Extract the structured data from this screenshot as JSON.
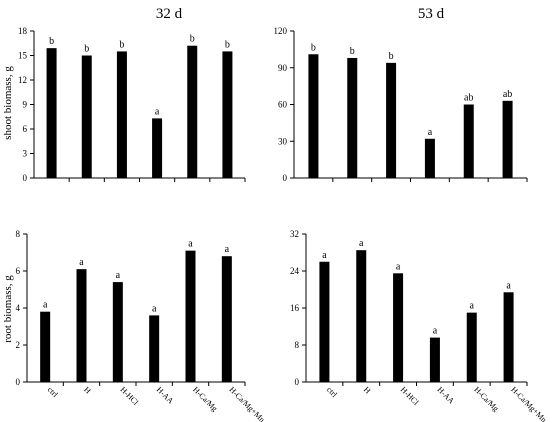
{
  "col_titles": [
    "32 d",
    "53 d"
  ],
  "row_labels": [
    "shoot biomass, g",
    "root biomass, g"
  ],
  "chart_data": [
    {
      "type": "bar",
      "title": "32 d",
      "ylabel": "shoot biomass, g",
      "xlabel": "",
      "ylim": [
        0,
        18
      ],
      "yticks": [
        0,
        3,
        6,
        9,
        12,
        15,
        18
      ],
      "categories": [
        "ctrl",
        "H",
        "H-HCl",
        "H-AA",
        "H-Ca/Mg",
        "H-Ca/Mg+Mn"
      ],
      "values": [
        15.9,
        15.0,
        15.5,
        7.3,
        16.2,
        15.5
      ],
      "letters": [
        "b",
        "b",
        "b",
        "a",
        "b",
        "b"
      ],
      "show_xticks": false
    },
    {
      "type": "bar",
      "title": "53 d",
      "ylabel": "",
      "xlabel": "",
      "ylim": [
        0,
        120
      ],
      "yticks": [
        0,
        30,
        60,
        90,
        120
      ],
      "categories": [
        "ctrl",
        "H",
        "H-HCl",
        "H-AA",
        "H-Ca/Mg",
        "H-Ca/Mg+Mn"
      ],
      "values": [
        101,
        98,
        94,
        32,
        60,
        63
      ],
      "letters": [
        "b",
        "b",
        "b",
        "a",
        "ab",
        "ab"
      ],
      "show_xticks": false
    },
    {
      "type": "bar",
      "title": "",
      "ylabel": "root biomass, g",
      "xlabel": "",
      "ylim": [
        0,
        8
      ],
      "yticks": [
        0,
        2,
        4,
        6,
        8
      ],
      "categories": [
        "ctrl",
        "H",
        "H-HCl",
        "H-AA",
        "H-Ca/Mg",
        "H-Ca/Mg+Mn"
      ],
      "values": [
        3.8,
        6.1,
        5.4,
        3.6,
        7.1,
        6.8
      ],
      "letters": [
        "a",
        "a",
        "a",
        "a",
        "a",
        "a"
      ],
      "show_xticks": true
    },
    {
      "type": "bar",
      "title": "",
      "ylabel": "",
      "xlabel": "",
      "ylim": [
        0,
        32
      ],
      "yticks": [
        0,
        8,
        16,
        24,
        32
      ],
      "categories": [
        "ctrl",
        "H",
        "H-HCl",
        "H-AA",
        "H-Ca/Mg",
        "H-Ca/Mg+Mn"
      ],
      "values": [
        26,
        28.5,
        23.5,
        9.6,
        15.0,
        19.4
      ],
      "letters": [
        "a",
        "a",
        "a",
        "a",
        "a",
        "a"
      ],
      "show_xticks": true
    }
  ],
  "colors": {
    "bar": "#000000",
    "axis": "#000000",
    "text": "#000000"
  }
}
